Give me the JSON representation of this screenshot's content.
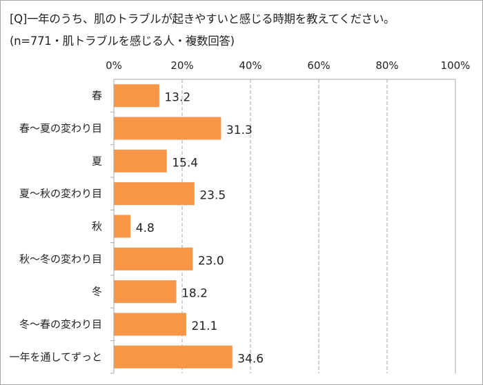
{
  "chart_data": {
    "type": "bar",
    "orientation": "horizontal",
    "title": "[Q]一年のうち、肌のトラブルが起きやすいと感じる時期を教えてください。",
    "subtitle": "(n=771・肌トラブルを感じる人・複数回答)",
    "categories": [
      "春",
      "春～夏の変わり目",
      "夏",
      "夏～秋の変わり目",
      "秋",
      "秋～冬の変わり目",
      "冬",
      "冬～春の変わり目",
      "一年を通してずっと"
    ],
    "values": [
      13.2,
      31.3,
      15.4,
      23.5,
      4.8,
      23.0,
      18.2,
      21.1,
      34.6
    ],
    "value_labels": [
      "13.2",
      "31.3",
      "15.4",
      "23.5",
      "4.8",
      "23.0",
      "18.2",
      "21.1",
      "34.6"
    ],
    "xlim": [
      0,
      100
    ],
    "x_ticks": [
      "0%",
      "20%",
      "40%",
      "60%",
      "80%",
      "100%"
    ],
    "x_axis_position": "top",
    "grid": true,
    "bar_color": "#F79646",
    "xlabel": "",
    "ylabel": ""
  }
}
